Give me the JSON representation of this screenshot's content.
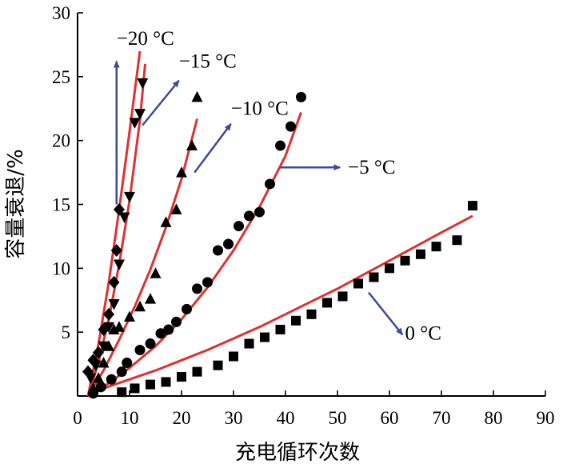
{
  "chart_data": {
    "type": "scatter",
    "xlabel": "充电循环次数",
    "ylabel": "容量衰退/%",
    "xlim": [
      0,
      90
    ],
    "ylim": [
      0,
      30
    ],
    "x_ticks": [
      "0",
      "10",
      "20",
      "30",
      "40",
      "50",
      "60",
      "70",
      "80",
      "90"
    ],
    "y_ticks": [
      "5",
      "10",
      "15",
      "20",
      "25",
      "30"
    ],
    "grid": false,
    "fit_line_color": "#e03030",
    "marker_color": "#000000",
    "arrow_color": "#3b4a9a",
    "series": [
      {
        "name": "0 °C",
        "marker": "square",
        "points": [
          [
            8.5,
            0.3
          ],
          [
            11,
            0.6
          ],
          [
            14,
            0.9
          ],
          [
            17,
            1.1
          ],
          [
            20,
            1.5
          ],
          [
            23,
            1.9
          ],
          [
            27,
            2.4
          ],
          [
            30,
            3.1
          ],
          [
            33,
            4.1
          ],
          [
            36,
            4.6
          ],
          [
            39,
            5.2
          ],
          [
            42,
            5.9
          ],
          [
            45,
            6.4
          ],
          [
            48,
            7.3
          ],
          [
            51,
            7.8
          ],
          [
            54,
            8.8
          ],
          [
            57,
            9.3
          ],
          [
            60,
            10.0
          ],
          [
            63,
            10.6
          ],
          [
            66,
            11.1
          ],
          [
            69,
            11.7
          ],
          [
            73,
            12.2
          ],
          [
            76,
            14.9
          ]
        ],
        "fit": [
          [
            2,
            0
          ],
          [
            5,
            0.6
          ],
          [
            10,
            1.3
          ],
          [
            15,
            2.0
          ],
          [
            20,
            2.8
          ],
          [
            25,
            3.6
          ],
          [
            30,
            4.5
          ],
          [
            35,
            5.4
          ],
          [
            40,
            6.4
          ],
          [
            45,
            7.4
          ],
          [
            50,
            8.4
          ],
          [
            55,
            9.5
          ],
          [
            60,
            10.6
          ],
          [
            65,
            11.7
          ],
          [
            70,
            12.8
          ],
          [
            76,
            14.1
          ]
        ]
      },
      {
        "name": "−5 °C",
        "marker": "circle",
        "points": [
          [
            3,
            0.2
          ],
          [
            4.5,
            0.7
          ],
          [
            6.5,
            1.3
          ],
          [
            8.5,
            1.9
          ],
          [
            9.5,
            2.6
          ],
          [
            12,
            3.6
          ],
          [
            14,
            4.1
          ],
          [
            16,
            4.9
          ],
          [
            17.5,
            5.2
          ],
          [
            19,
            5.8
          ],
          [
            21,
            6.8
          ],
          [
            23,
            8.4
          ],
          [
            25,
            8.9
          ],
          [
            27,
            11.4
          ],
          [
            29,
            11.9
          ],
          [
            31,
            13.3
          ],
          [
            33,
            14.1
          ],
          [
            35,
            14.4
          ],
          [
            37,
            16.6
          ],
          [
            39,
            19.6
          ],
          [
            41,
            21.1
          ],
          [
            43,
            23.4
          ]
        ],
        "fit": [
          [
            2,
            0
          ],
          [
            6,
            1.0
          ],
          [
            10,
            2.2
          ],
          [
            15,
            3.9
          ],
          [
            20,
            6.0
          ],
          [
            25,
            8.5
          ],
          [
            30,
            11.4
          ],
          [
            35,
            14.8
          ],
          [
            40,
            18.8
          ],
          [
            43,
            22.2
          ]
        ]
      },
      {
        "name": "−10 °C",
        "marker": "triangle",
        "points": [
          [
            3,
            0.6
          ],
          [
            4,
            1.4
          ],
          [
            5,
            2.6
          ],
          [
            6,
            3.9
          ],
          [
            7,
            5.2
          ],
          [
            8,
            5.4
          ],
          [
            10,
            6.2
          ],
          [
            12,
            7.0
          ],
          [
            14,
            7.6
          ],
          [
            15,
            9.6
          ],
          [
            17,
            13.6
          ],
          [
            19,
            14.6
          ],
          [
            20,
            17.5
          ],
          [
            22,
            19.6
          ],
          [
            23,
            23.4
          ]
        ],
        "fit": [
          [
            2,
            0
          ],
          [
            5,
            2.0
          ],
          [
            8,
            4.4
          ],
          [
            11,
            7.0
          ],
          [
            14,
            9.9
          ],
          [
            17,
            13.2
          ],
          [
            20,
            17.0
          ],
          [
            23,
            21.7
          ]
        ]
      },
      {
        "name": "−15 °C",
        "marker": "triangle-down",
        "points": [
          [
            2.5,
            1.4
          ],
          [
            3.5,
            2.4
          ],
          [
            5,
            3.9
          ],
          [
            6,
            5.4
          ],
          [
            7,
            7.2
          ],
          [
            8,
            10.3
          ],
          [
            9,
            14.0
          ],
          [
            10,
            15.6
          ],
          [
            11,
            21.4
          ],
          [
            12,
            22.1
          ],
          [
            12.5,
            24.5
          ]
        ],
        "fit": [
          [
            2,
            0
          ],
          [
            4,
            2.6
          ],
          [
            6,
            6.0
          ],
          [
            8,
            10.3
          ],
          [
            10,
            15.3
          ],
          [
            12,
            21.6
          ],
          [
            13,
            26.0
          ]
        ]
      },
      {
        "name": "−20 °C",
        "marker": "diamond",
        "points": [
          [
            2,
            1.9
          ],
          [
            3,
            2.8
          ],
          [
            4,
            3.4
          ],
          [
            5,
            5.2
          ],
          [
            6,
            6.4
          ],
          [
            7,
            8.9
          ],
          [
            7.5,
            11.4
          ],
          [
            8,
            14.6
          ]
        ],
        "fit": [
          [
            2,
            0
          ],
          [
            4,
            4.0
          ],
          [
            6,
            8.9
          ],
          [
            8,
            14.6
          ],
          [
            10,
            20.7
          ],
          [
            12,
            27.0
          ]
        ]
      }
    ],
    "annotations": [
      {
        "text": "−20 °C",
        "x": 7.5,
        "y": 27.5,
        "arrow_from": [
          7.5,
          15.0
        ],
        "arrow_to": [
          7.5,
          26.2
        ]
      },
      {
        "text": "−15 °C",
        "x": 19.5,
        "y": 25.7,
        "arrow_from": [
          12.5,
          21.2
        ],
        "arrow_to": [
          19.5,
          24.7
        ]
      },
      {
        "text": "−10 °C",
        "x": 29.5,
        "y": 22.0,
        "arrow_from": [
          22.5,
          17.5
        ],
        "arrow_to": [
          29.5,
          21.3
        ]
      },
      {
        "text": "−5 °C",
        "x": 52.0,
        "y": 17.4,
        "arrow_from": [
          39.0,
          17.9
        ],
        "arrow_to": [
          50.5,
          17.9
        ]
      },
      {
        "text": "0 °C",
        "x": 63.0,
        "y": 4.4,
        "arrow_from": [
          56.0,
          8.1
        ],
        "arrow_to": [
          62.5,
          4.8
        ]
      }
    ]
  }
}
